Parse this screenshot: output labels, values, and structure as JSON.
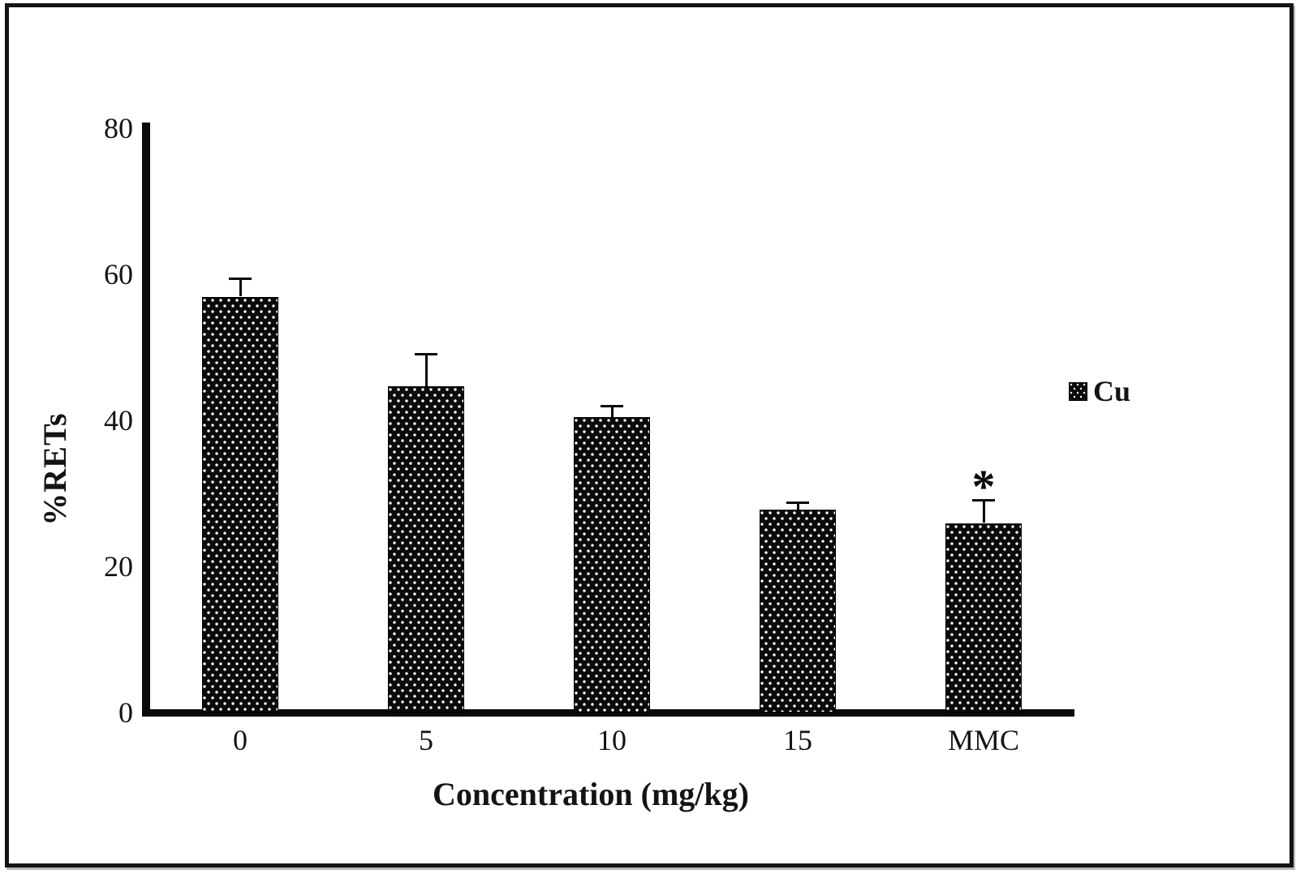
{
  "chart_data": {
    "type": "bar",
    "title": "",
    "categories": [
      "0",
      "5",
      "10",
      "15",
      "MMC"
    ],
    "series": [
      {
        "name": "Cu",
        "values": [
          56.5,
          44.2,
          40.0,
          27.3,
          25.5
        ]
      }
    ],
    "error_bars_upper": [
      2.4,
      4.4,
      1.5,
      1.0,
      3.1
    ],
    "point_annotations": [
      "",
      "",
      "",
      "",
      "*"
    ],
    "xlabel": "Concentration (mg/kg)",
    "ylabel": "%RETs",
    "ylim": [
      0,
      80
    ],
    "yticks": [
      0,
      20,
      40,
      60,
      80
    ],
    "grid": false,
    "legend": {
      "entries": [
        "Cu"
      ],
      "position": "right"
    },
    "bar_color": "#0b0b0b",
    "bar_pattern": "black with offset white dot grid",
    "error_bar_color": "#0a0a0a",
    "significance_note": "* above MMC bar"
  }
}
